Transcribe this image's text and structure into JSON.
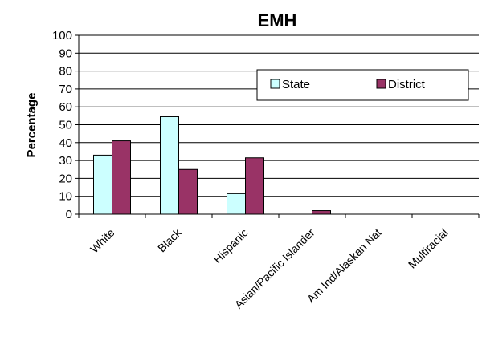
{
  "chart_data": {
    "type": "bar",
    "title": "EMH",
    "xlabel": "",
    "ylabel": "Percentage",
    "ylim": [
      0,
      100
    ],
    "yticks": [
      0,
      10,
      20,
      30,
      40,
      50,
      60,
      70,
      80,
      90,
      100
    ],
    "categories": [
      "White",
      "Black",
      "Hispanic",
      "Asian/Pacific Islander",
      "Am Ind/Alaskan Nat",
      "Multiracial"
    ],
    "series": [
      {
        "name": "State",
        "color": "#ccffff",
        "values": [
          33,
          54.5,
          11.5,
          0,
          0,
          0
        ]
      },
      {
        "name": "District",
        "color": "#993366",
        "values": [
          41,
          25,
          31.5,
          2,
          0,
          0
        ]
      }
    ],
    "grid": true,
    "legend": "top-right"
  }
}
